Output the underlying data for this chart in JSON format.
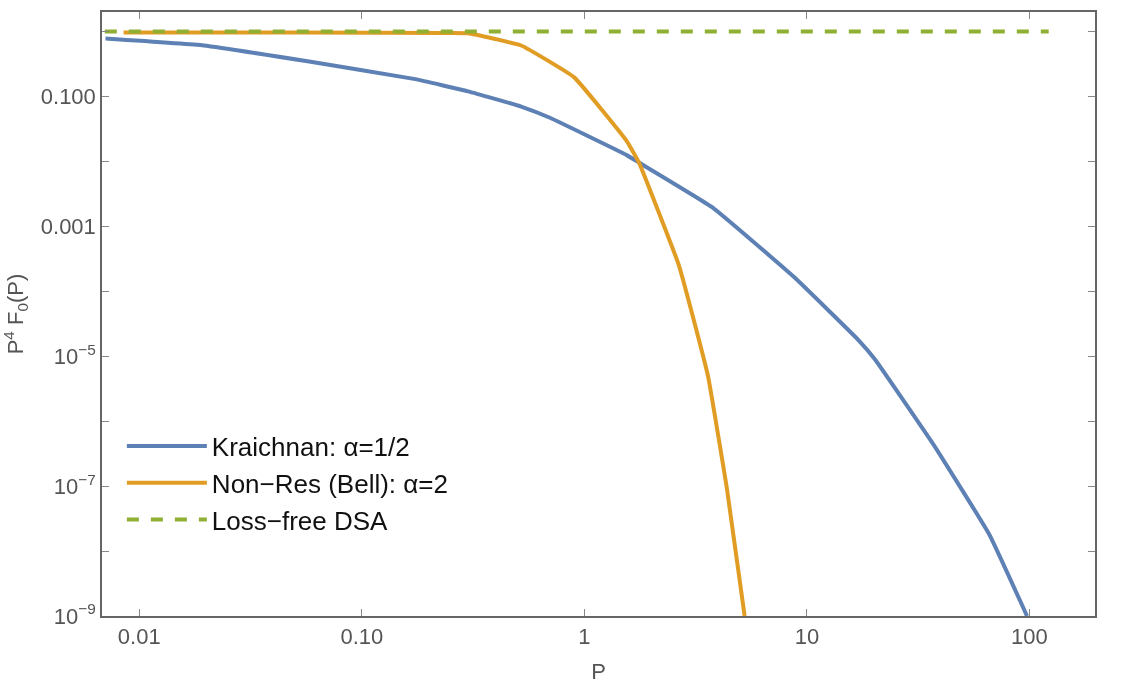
{
  "chart_data": {
    "type": "line",
    "xlabel": "P",
    "ylabel": "P$^{4}$ F$_{0}$(P)",
    "log": "xy",
    "legend": "bottom left",
    "marker": "none",
    "xlim": [
      0.0068,
      197
    ],
    "ylim": [
      1e-09,
      2
    ],
    "xticks": [
      {
        "value": 0.01,
        "label": "0.01"
      },
      {
        "value": 0.1,
        "label": "0.10"
      },
      1,
      10,
      100
    ],
    "yticks": [
      {
        "value": 1,
        "label": null
      },
      {
        "value": 0.1,
        "label": "0.100"
      },
      {
        "value": 0.01,
        "label": null
      },
      {
        "value": 0.001,
        "label": "0.001"
      },
      {
        "value": 0.0001,
        "label": null
      },
      {
        "value": 1e-05,
        "label": "10$^{−5}$"
      },
      {
        "value": 1e-06,
        "label": null
      },
      {
        "value": 1e-07,
        "label": "10$^{−7}$"
      },
      {
        "value": 1e-08,
        "label": null
      },
      {
        "value": 1e-09,
        "label": "10$^{−9}$"
      }
    ],
    "series": [
      {
        "name": "Kraichnan: α=1/2",
        "color": "#5e81b5",
        "line_style": "solid",
        "x": [
          0.00705,
          0.0195,
          0.058,
          0.174,
          0.3,
          0.52,
          0.7,
          1.55,
          1.76,
          3.76,
          8.73,
          17.0,
          20.2,
          37,
          66,
          97.5
        ],
        "values": [
          0.78,
          0.61,
          0.345,
          0.185,
          0.12,
          0.07,
          0.047,
          0.0125,
          0.0096,
          0.00196,
          0.000167,
          1.79e-05,
          9e-06,
          4.4e-07,
          1.8e-08,
          1e-09
        ]
      },
      {
        "name": "Non−Res (Bell): α=2",
        "color": "#e19c24",
        "line_style": "solid",
        "x": [
          0.0085,
          0.05,
          0.25,
          0.3,
          0.52,
          0.9,
          1.55,
          1.76,
          2.65,
          3.15,
          3.6,
          4.38,
          5.25
        ],
        "values": [
          0.97,
          0.97,
          0.95,
          0.94,
          0.61,
          0.197,
          0.0206,
          0.0096,
          0.00026,
          2.95e-05,
          4.8e-06,
          8.7e-08,
          1e-09
        ]
      },
      {
        "name": "Loss−free DSA",
        "color": "#8fb032",
        "line_style": "dashed",
        "x": [
          0.007,
          122
        ],
        "values": [
          1,
          1
        ]
      }
    ]
  }
}
